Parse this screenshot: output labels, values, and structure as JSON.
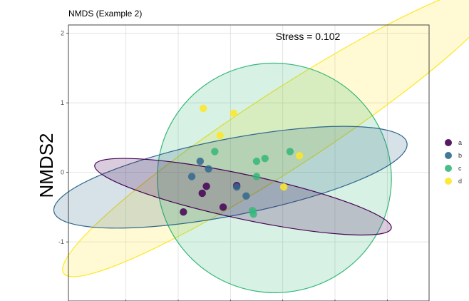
{
  "chart_data": {
    "type": "scatter",
    "title": "NMDS (Example 2)",
    "xlabel": "",
    "ylabel": "NMDS2",
    "annotation": "Stress = 0.102",
    "ylim": [
      -1.85,
      2.12
    ],
    "xlim": [
      -1.05,
      2.4
    ],
    "y_ticks": [
      -1,
      0,
      1,
      2
    ],
    "y_tick_labels": [
      "-1",
      "0",
      "1",
      "2"
    ],
    "x_grid": [
      -0.5,
      0.0,
      0.5,
      1.0,
      1.5,
      2.0
    ],
    "legend": {
      "position": "right",
      "entries": [
        "a",
        "b",
        "c",
        "d"
      ]
    },
    "groups": [
      {
        "name": "a",
        "color": "#440154",
        "points": [
          [
            0.05,
            -0.57
          ],
          [
            0.27,
            -0.2
          ],
          [
            0.23,
            -0.3
          ],
          [
            0.43,
            -0.5
          ],
          [
            0.56,
            -0.19
          ]
        ],
        "ellipse": {
          "cx": 0.62,
          "cy": -0.35,
          "rx": 1.45,
          "ry": 0.32,
          "angle_deg": 12
        }
      },
      {
        "name": "b",
        "color": "#31688E",
        "points": [
          [
            0.13,
            -0.06
          ],
          [
            0.21,
            0.16
          ],
          [
            0.29,
            0.05
          ],
          [
            0.65,
            -0.34
          ],
          [
            0.56,
            -0.21
          ]
        ],
        "ellipse": {
          "cx": 0.5,
          "cy": -0.07,
          "rx": 1.72,
          "ry": 0.55,
          "angle_deg": -11
        }
      },
      {
        "name": "c",
        "color": "#35B779",
        "points": [
          [
            0.35,
            0.3
          ],
          [
            0.75,
            0.16
          ],
          [
            0.83,
            0.2
          ],
          [
            1.07,
            0.3
          ],
          [
            0.75,
            -0.06
          ],
          [
            0.71,
            -0.55
          ],
          [
            0.72,
            -0.6
          ]
        ],
        "ellipse": {
          "cx": 0.92,
          "cy": -0.08,
          "rx": 1.12,
          "ry": 1.65,
          "angle_deg": 8
        }
      },
      {
        "name": "d",
        "color": "#FDE725",
        "points": [
          [
            0.24,
            0.92
          ],
          [
            0.53,
            0.85
          ],
          [
            0.4,
            0.53
          ],
          [
            1.01,
            -0.21
          ],
          [
            1.16,
            0.24
          ]
        ],
        "ellipse": {
          "cx": 1.0,
          "cy": 0.6,
          "rx": 2.5,
          "ry": 0.55,
          "angle_deg": -33
        }
      }
    ]
  }
}
